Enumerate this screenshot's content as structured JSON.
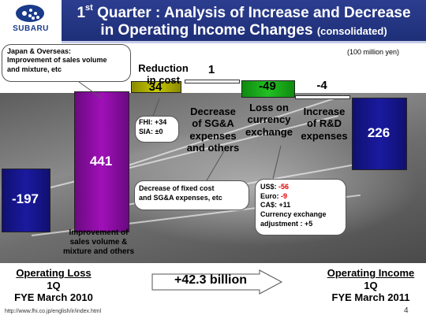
{
  "header": {
    "brand": "SUBARU",
    "title_line1_pre": "1",
    "title_line1_sup": "st",
    "title_line1_post": " Quarter : Analysis of Increase and Decrease",
    "title_line2": "in Operating Income Changes",
    "title_line2_small": "(consolidated)"
  },
  "unit": "(100 million yen)",
  "chart_data": {
    "type": "bar",
    "subtype": "waterfall",
    "unit": "100 million yen",
    "ylim": [
      -220,
      460
    ],
    "bars": [
      {
        "label": "Operating Loss 1Q FYE March 2010",
        "value": -197,
        "base": 0,
        "end": -197,
        "display": "-197",
        "color": "#1a1aa0",
        "kind": "total"
      },
      {
        "label": "Improvement of sales volume & mixture and others",
        "value": 441,
        "base": -197,
        "end": 244,
        "display": "441",
        "color": "#a010b8",
        "kind": "increase"
      },
      {
        "label": "Reduction in cost",
        "value": 34,
        "base": 244,
        "end": 278,
        "display": "34",
        "color": "#c8c800",
        "kind": "increase"
      },
      {
        "label": "Decrease of SG&A expenses and others",
        "value": 1,
        "base": 278,
        "end": 279,
        "display": "1",
        "color": "#ffffff",
        "kind": "increase"
      },
      {
        "label": "Loss on currency exchange",
        "value": -49,
        "base": 279,
        "end": 230,
        "display": "-49",
        "color": "#22c022",
        "kind": "decrease"
      },
      {
        "label": "Increase of R&D expenses",
        "value": -4,
        "base": 230,
        "end": 226,
        "display": "-4",
        "color": "#ffffff",
        "kind": "decrease"
      },
      {
        "label": "Operating Income 1Q FYE March 2011",
        "value": 226,
        "base": 0,
        "end": 226,
        "display": "226",
        "color": "#1a1aa0",
        "kind": "total"
      }
    ]
  },
  "bar_labels": {
    "improvement": [
      "Improvement of",
      "sales volume &",
      "mixture and others"
    ],
    "reduction": [
      "Reduction",
      "in cost"
    ],
    "sga": [
      "Decrease",
      "of SG&A",
      "expenses",
      "and others"
    ],
    "fx": [
      "Loss on",
      "currency",
      "exchange"
    ],
    "rd": [
      "Increase",
      "of R&D",
      "expenses"
    ]
  },
  "callouts": {
    "japan": [
      "Japan & Overseas:",
      "Improvement of sales volume",
      "and mixture, etc"
    ],
    "fhi": {
      "line1": "FHI: +34",
      "line2": "SIA: ±0"
    },
    "fixed": [
      "Decrease of fixed cost",
      "and SG&A expenses, etc"
    ],
    "fx": {
      "usd_label": "US$: ",
      "usd_value": "-56",
      "eur_label": "Euro: ",
      "eur_value": "-9",
      "cad": "CA$: +11",
      "adj1": "Currency exchange",
      "adj2": "adjustment : +5"
    }
  },
  "bottom": {
    "left_title": "Operating Loss",
    "left_sub1": "1Q",
    "left_sub2": "FYE March 2010",
    "change": "+42.3 billion",
    "right_title": "Operating Income",
    "right_sub1": "1Q",
    "right_sub2": "FYE March 2011"
  },
  "footer": {
    "url": "http://www.fhi.co.jp/english/ir/index.html",
    "page": "4"
  }
}
